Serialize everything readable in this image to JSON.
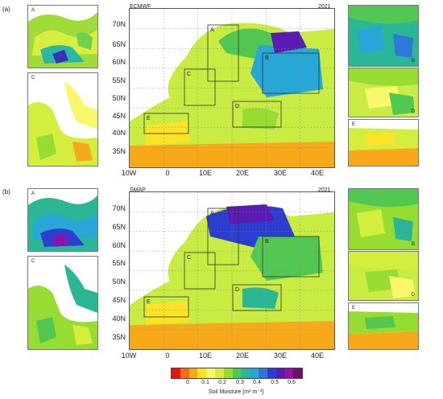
{
  "panels": [
    {
      "key": "a",
      "label": "(a)",
      "model": "ECMWF",
      "year": "2021",
      "insets_left": [
        "A",
        "C"
      ],
      "insets_right": [
        "B",
        "D",
        "E"
      ]
    },
    {
      "key": "b",
      "label": "(b)",
      "model": "SMAP",
      "year": "2021",
      "insets_left": [
        "A",
        "C"
      ],
      "insets_right": [
        "B",
        "D",
        "E"
      ]
    }
  ],
  "map_axes": {
    "lat_labels": [
      "70N",
      "65N",
      "60N",
      "55N",
      "50N",
      "45N",
      "40N",
      "35N"
    ],
    "lon_labels": [
      "10W",
      "0",
      "10E",
      "20E",
      "30E",
      "40E"
    ]
  },
  "regions": [
    "A",
    "B",
    "C",
    "D",
    "E"
  ],
  "colorbar": {
    "ticks": [
      "0",
      "0.1",
      "0.2",
      "0.3",
      "0.4",
      "0.5",
      "0.6"
    ],
    "colors": [
      "#ee1111",
      "#f26d16",
      "#f8a91a",
      "#fde226",
      "#f9f86c",
      "#d3ee3c",
      "#96dc33",
      "#52c853",
      "#2bb796",
      "#27a7d6",
      "#2d78d8",
      "#2c3ed0",
      "#5a1bb4",
      "#8f13a3",
      "#6d0f6f"
    ],
    "title": "Soil Moisture [m³ m⁻³]"
  },
  "colors": {
    "land_base": "#c9ec43",
    "sea": "#ffffff",
    "box_line": "#333333",
    "grid": "#888888"
  }
}
